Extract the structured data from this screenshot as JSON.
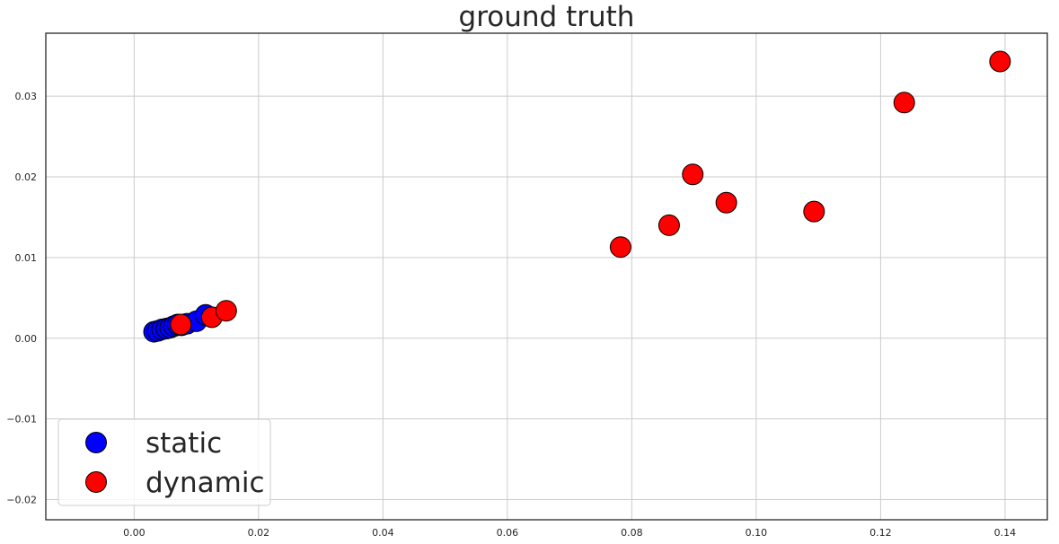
{
  "chart_data": {
    "type": "scatter",
    "title": "ground truth",
    "xlabel": "",
    "ylabel": "",
    "xlim": [
      -0.0142,
      0.1468
    ],
    "ylim": [
      -0.0225,
      0.0378
    ],
    "xticks": [
      "0.00",
      "0.02",
      "0.04",
      "0.06",
      "0.08",
      "0.10",
      "0.12",
      "0.14"
    ],
    "yticks": [
      "−0.02",
      "−0.01",
      "0.00",
      "0.01",
      "0.02",
      "0.03"
    ],
    "grid": true,
    "legend_position": "bottom-left",
    "series": [
      {
        "name": "static",
        "color": "#0000ff",
        "points": [
          [
            0.0032,
            0.0008
          ],
          [
            0.0038,
            0.0009
          ],
          [
            0.0045,
            0.0011
          ],
          [
            0.0052,
            0.0012
          ],
          [
            0.0058,
            0.0013
          ],
          [
            0.0064,
            0.0015
          ],
          [
            0.007,
            0.0017
          ],
          [
            0.0076,
            0.0016
          ],
          [
            0.0085,
            0.0018
          ],
          [
            0.01,
            0.0021
          ],
          [
            0.0115,
            0.0029
          ]
        ]
      },
      {
        "name": "dynamic",
        "color": "#ff0000",
        "points": [
          [
            0.0075,
            0.0017
          ],
          [
            0.0125,
            0.0026
          ],
          [
            0.0148,
            0.0034
          ],
          [
            0.0782,
            0.0113
          ],
          [
            0.086,
            0.014
          ],
          [
            0.0898,
            0.0203
          ],
          [
            0.0952,
            0.0168
          ],
          [
            0.1093,
            0.0157
          ],
          [
            0.1238,
            0.0292
          ],
          [
            0.1392,
            0.0343
          ]
        ]
      }
    ]
  }
}
